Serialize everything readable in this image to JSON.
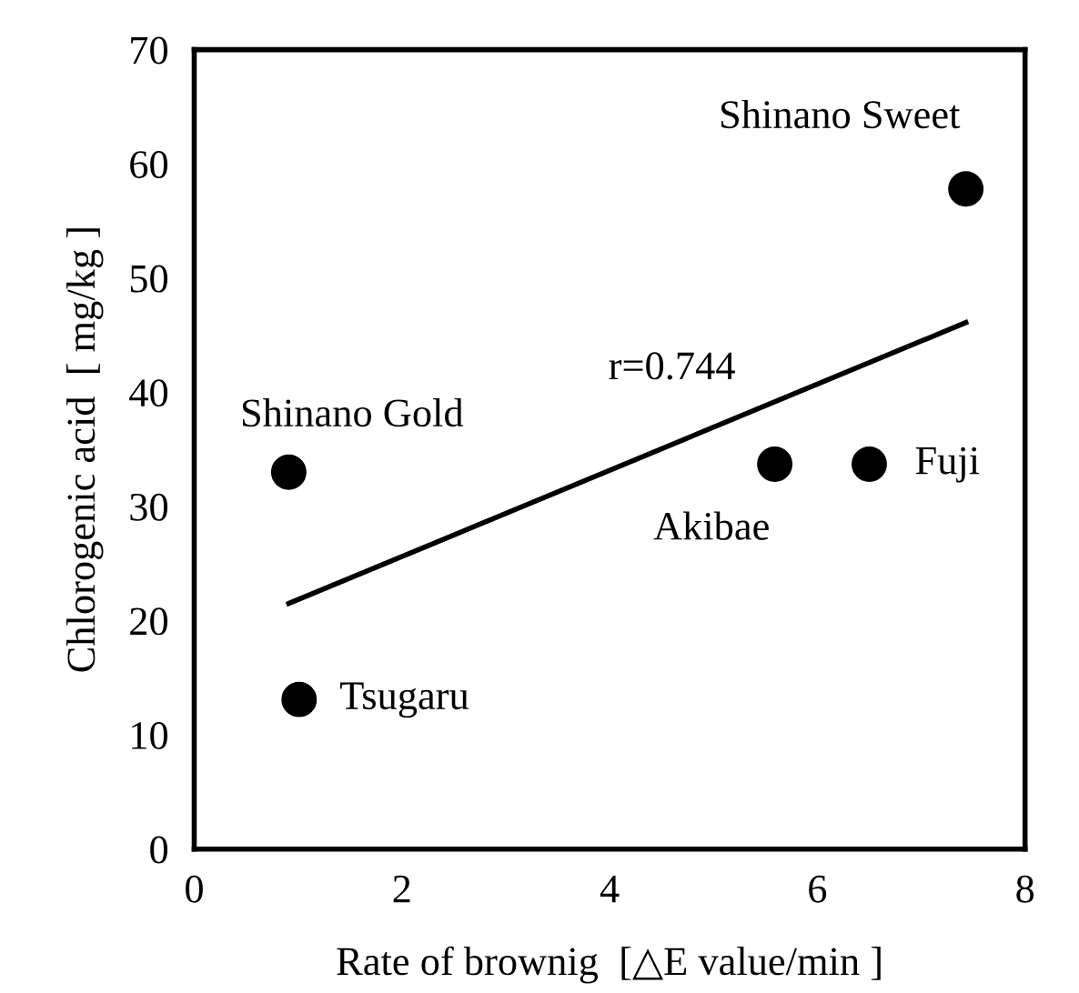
{
  "chart_data": {
    "type": "scatter",
    "xlabel": "Rate of brownig  [△E value/min ]",
    "ylabel": "Chlorogenic acid  [ mg/kg ]",
    "xlim": [
      0,
      8
    ],
    "ylim": [
      0,
      70
    ],
    "xticks": [
      0,
      2,
      4,
      6,
      8
    ],
    "yticks": [
      0,
      10,
      20,
      30,
      40,
      50,
      60,
      70
    ],
    "grid": false,
    "legend": false,
    "series": [
      {
        "marker": "circle",
        "color": "#000000",
        "x": [
          0.91,
          1.01,
          5.59,
          6.5,
          7.43
        ],
        "values": [
          33.0,
          13.1,
          33.7,
          33.7,
          57.8
        ]
      },
      {
        "type": "line",
        "color": "#000000",
        "line_style": "solid",
        "marker": "none",
        "x": [
          0.91,
          7.43
        ],
        "values": [
          21.5,
          46.1
        ]
      }
    ],
    "annotations": [
      {
        "text": "Shinano Gold",
        "x": 0.91,
        "y": 33.0
      },
      {
        "text": "Tsugaru",
        "x": 1.01,
        "y": 13.1
      },
      {
        "text": "Akibae",
        "x": 5.59,
        "y": 33.7
      },
      {
        "text": "Fuji",
        "x": 6.5,
        "y": 33.7
      },
      {
        "text": "Shinano Sweet",
        "x": 7.43,
        "y": 57.8
      },
      "r=0.744"
    ]
  }
}
